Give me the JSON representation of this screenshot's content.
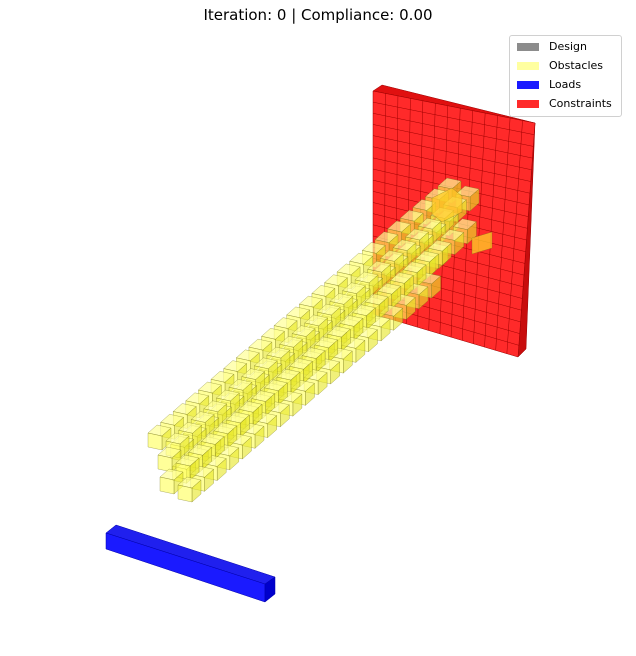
{
  "title": "Iteration: 0 | Compliance: 0.00",
  "chart_data": {
    "type": "voxel-3d",
    "legend": [
      {
        "label": "Design",
        "color": "#8c8c8c"
      },
      {
        "label": "Obstacles",
        "color": "#ffffa0"
      },
      {
        "label": "Loads",
        "color": "#1a1aff"
      },
      {
        "label": "Constraints",
        "color": "#ff2a2a"
      }
    ],
    "legend_position": "top-right",
    "grid": false,
    "axes_visible": false
  }
}
